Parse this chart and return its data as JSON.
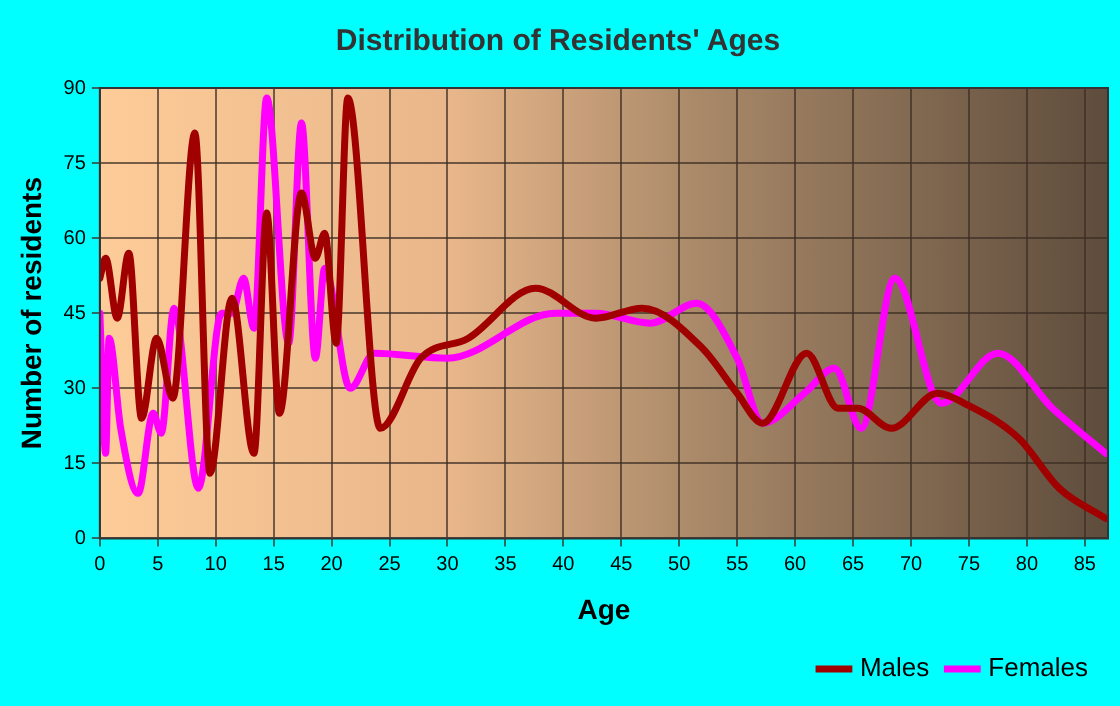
{
  "chart_data": {
    "type": "line",
    "title": "Distribution of Residents' Ages",
    "xlabel": "Age",
    "ylabel": "Number of residents",
    "xlim": [
      0,
      87
    ],
    "xticks": [
      0,
      5,
      10,
      15,
      20,
      25,
      30,
      35,
      40,
      45,
      50,
      55,
      60,
      65,
      70,
      75,
      80,
      85
    ],
    "ylim": [
      0,
      90
    ],
    "yticks": [
      0,
      15,
      30,
      45,
      60,
      75,
      90
    ],
    "grid": true,
    "legend": "bottom right",
    "marker": "none",
    "line_style": "solid",
    "series": [
      {
        "name": "Males",
        "color": "#a00000",
        "x": [
          0,
          0.5,
          1.5,
          2.5,
          3.6,
          4.9,
          6.3,
          8.2,
          9.5,
          11.4,
          13.3,
          14.4,
          15.5,
          17.4,
          18.6,
          19.4,
          20.4,
          21.4,
          24.2,
          27.7,
          31.8,
          37.6,
          42.8,
          46.8,
          52,
          55,
          57.2,
          61,
          63.7,
          65.4,
          68.3,
          72.3,
          74.6,
          79.3,
          82.8,
          86.8
        ],
        "values": [
          52,
          56,
          44,
          57,
          24,
          40,
          28,
          81,
          13,
          48,
          17,
          65,
          25,
          69,
          56,
          61,
          39,
          88,
          22,
          36,
          40,
          50,
          44,
          46,
          38,
          29,
          23,
          37,
          26,
          26,
          22,
          29,
          27,
          20,
          10,
          4
        ]
      },
      {
        "name": "Females",
        "color": "#ff00ff",
        "x": [
          0,
          0.5,
          0.8,
          1.8,
          3.3,
          4.6,
          5.3,
          6.4,
          8.5,
          10.5,
          11.4,
          12.4,
          13.3,
          14.4,
          16.3,
          17.4,
          18.6,
          19.4,
          21.6,
          23.7,
          30,
          39.3,
          42.8,
          47.5,
          51.5,
          55,
          57.2,
          60.8,
          63.4,
          65.7,
          68.6,
          72.6,
          77.5,
          82.2,
          86.8
        ],
        "values": [
          45,
          17,
          40,
          22,
          9,
          25,
          21,
          46,
          10,
          45,
          45,
          52,
          42,
          88,
          39,
          83,
          36,
          54,
          30,
          37,
          36,
          45,
          45,
          43,
          47,
          36,
          23,
          29,
          34,
          22,
          52,
          27,
          37,
          26,
          17
        ]
      }
    ]
  }
}
